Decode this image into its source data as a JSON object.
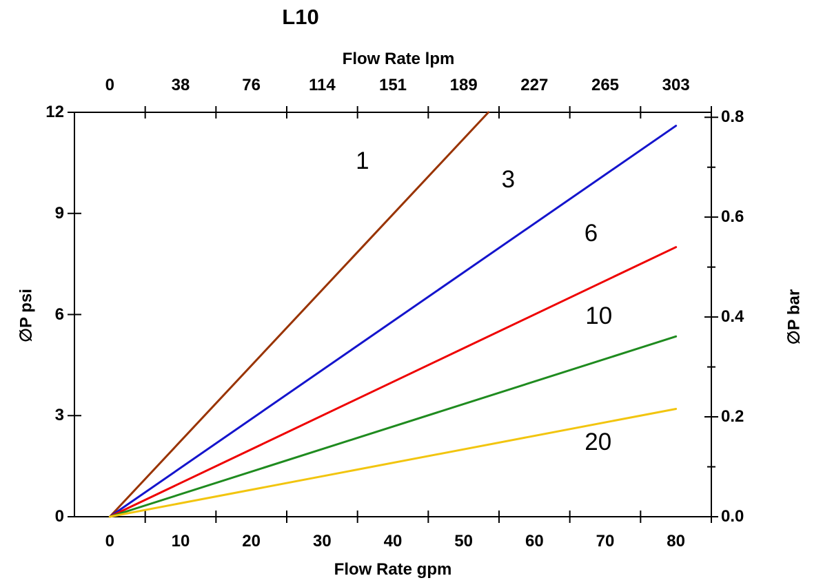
{
  "title": "L10",
  "axes": {
    "top": {
      "label": "Flow Rate lpm",
      "ticks": [
        "0",
        "38",
        "76",
        "114",
        "151",
        "189",
        "227",
        "265",
        "303"
      ]
    },
    "bottom": {
      "label": "Flow Rate gpm",
      "ticks": [
        "0",
        "10",
        "20",
        "30",
        "40",
        "50",
        "60",
        "70",
        "80"
      ]
    },
    "left": {
      "label": "∅P psi",
      "ticks": [
        "0",
        "3",
        "6",
        "9",
        "12"
      ]
    },
    "right": {
      "label": "∅P bar",
      "ticks": [
        "0.0",
        "0.2",
        "0.4",
        "0.6",
        "0.8"
      ]
    }
  },
  "chart_data": {
    "type": "line",
    "title": "L10",
    "xlabel_bottom": "Flow Rate gpm",
    "xlabel_top": "Flow Rate lpm",
    "ylabel_left": "∅P psi",
    "ylabel_right": "∅P bar",
    "x_range_gpm": [
      -5,
      85
    ],
    "y_range_psi": [
      0,
      12
    ],
    "y_range_bar": [
      0,
      0.81
    ],
    "x_ticks_gpm": [
      0,
      10,
      20,
      30,
      40,
      50,
      60,
      70,
      80
    ],
    "x_ticks_lpm": [
      0,
      38,
      76,
      114,
      151,
      189,
      227,
      265,
      303
    ],
    "y_ticks_psi": [
      0,
      3,
      6,
      9,
      12
    ],
    "y_ticks_bar": [
      0.0,
      0.2,
      0.4,
      0.6,
      0.8
    ],
    "grid": false,
    "legend": "curve labels are micron ratings printed beside each line",
    "series": [
      {
        "name": "1",
        "color": "#993300",
        "slope_psi_per_gpm": 0.224,
        "points_gpm_psi": [
          [
            0,
            0
          ],
          [
            53.5,
            12.0
          ]
        ],
        "label_at_gpm_psi": [
          35.7,
          10.55
        ]
      },
      {
        "name": "3",
        "color": "#1414CC",
        "slope_psi_per_gpm": 0.145,
        "points_gpm_psi": [
          [
            0,
            0
          ],
          [
            80,
            11.6
          ]
        ],
        "label_at_gpm_psi": [
          56.3,
          10.0
        ]
      },
      {
        "name": "6",
        "color": "#EE0000",
        "slope_psi_per_gpm": 0.1,
        "points_gpm_psi": [
          [
            0,
            0
          ],
          [
            80,
            8.0
          ]
        ],
        "label_at_gpm_psi": [
          68.0,
          8.4
        ]
      },
      {
        "name": "10",
        "color": "#1F8B1F",
        "slope_psi_per_gpm": 0.067,
        "points_gpm_psi": [
          [
            0,
            0
          ],
          [
            80,
            5.35
          ]
        ],
        "label_at_gpm_psi": [
          69.1,
          5.95
        ]
      },
      {
        "name": "20",
        "color": "#F2C50F",
        "slope_psi_per_gpm": 0.04,
        "points_gpm_psi": [
          [
            0,
            0
          ],
          [
            80,
            3.2
          ]
        ],
        "label_at_gpm_psi": [
          69.0,
          2.2
        ]
      }
    ]
  }
}
